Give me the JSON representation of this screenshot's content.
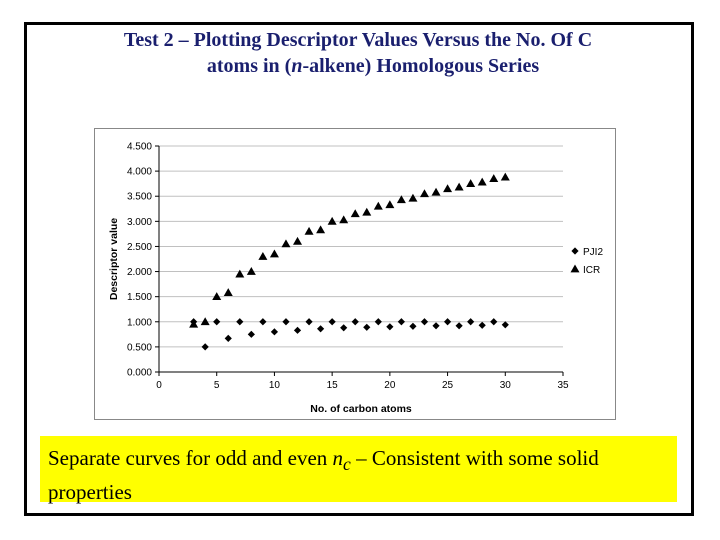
{
  "title_line1": "Test 2 – Plotting Descriptor Values Versus the No. Of C",
  "title_line2_pre": "atoms in (",
  "title_line2_italic": "n",
  "title_line2_post": "-alkene) Homologous Series",
  "note": {
    "pre": "Separate curves for  odd and even ",
    "var": "n",
    "sub": "c",
    "post": " – Consistent with some solid properties"
  },
  "colors": {
    "marker": "#000000",
    "grid": "#c0c0c0",
    "title": "#1a1f6e",
    "note_bg": "#ffff00"
  },
  "chart_data": {
    "type": "scatter",
    "xlabel": "No. of carbon atoms",
    "ylabel": "Descriptor value",
    "xlim": [
      0,
      35
    ],
    "ylim": [
      0,
      4.5
    ],
    "xticks": [
      "0",
      "5",
      "10",
      "15",
      "20",
      "25",
      "30",
      "35"
    ],
    "yticks": [
      "0.000",
      "0.500",
      "1.000",
      "1.500",
      "2.000",
      "2.500",
      "3.000",
      "3.500",
      "4.000",
      "4.500"
    ],
    "legend_position": "right",
    "grid": "horizontal",
    "series": [
      {
        "name": "PJI2",
        "marker": "diamond",
        "x": [
          3,
          4,
          5,
          6,
          7,
          8,
          9,
          10,
          11,
          12,
          13,
          14,
          15,
          16,
          17,
          18,
          19,
          20,
          21,
          22,
          23,
          24,
          25,
          26,
          27,
          28,
          29,
          30
        ],
        "y": [
          1.0,
          0.5,
          1.0,
          0.67,
          1.0,
          0.75,
          1.0,
          0.8,
          1.0,
          0.83,
          1.0,
          0.86,
          1.0,
          0.88,
          1.0,
          0.89,
          1.0,
          0.9,
          1.0,
          0.91,
          1.0,
          0.92,
          1.0,
          0.92,
          1.0,
          0.93,
          1.0,
          0.94
        ]
      },
      {
        "name": "ICR",
        "marker": "triangle",
        "x": [
          3,
          4,
          5,
          6,
          7,
          8,
          9,
          10,
          11,
          12,
          13,
          14,
          15,
          16,
          17,
          18,
          19,
          20,
          21,
          22,
          23,
          24,
          25,
          26,
          27,
          28,
          29,
          30
        ],
        "y": [
          0.95,
          1.0,
          1.5,
          1.58,
          1.95,
          2.0,
          2.3,
          2.35,
          2.55,
          2.6,
          2.8,
          2.83,
          3.0,
          3.03,
          3.15,
          3.18,
          3.3,
          3.33,
          3.43,
          3.46,
          3.55,
          3.58,
          3.65,
          3.68,
          3.75,
          3.78,
          3.85,
          3.88
        ]
      }
    ]
  }
}
